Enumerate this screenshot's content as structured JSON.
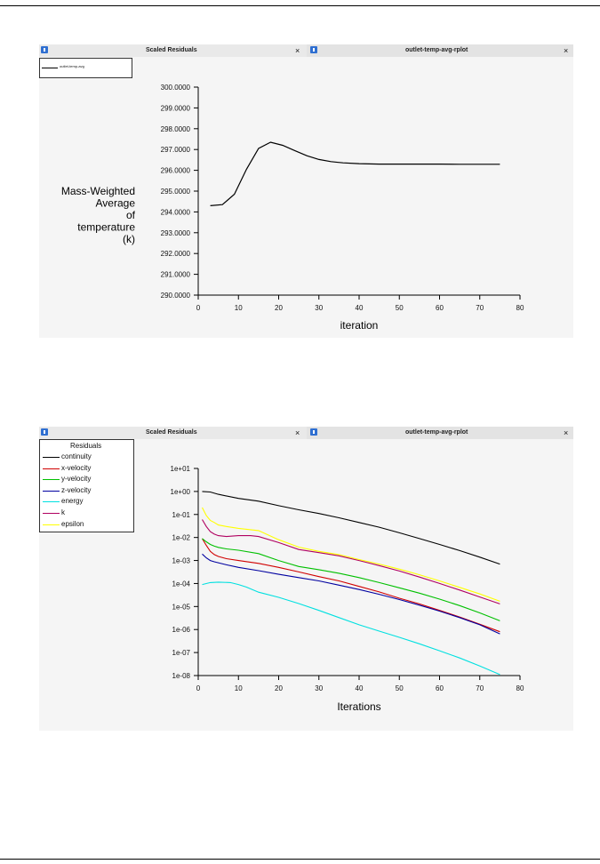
{
  "top_window": {
    "tab_left_label": "Scaled Residuals",
    "tab_right_label": "outlet-temp-avg-rplot",
    "close_symbol": "×",
    "legend_entry": "outlet-temp-avg"
  },
  "bottom_window": {
    "tab_left_label": "Scaled Residuals",
    "tab_right_label": "outlet-temp-avg-rplot",
    "close_symbol": "×",
    "legend_title": "Residuals"
  },
  "chart_data": [
    {
      "type": "line",
      "ylabel_lines": [
        "Mass-Weighted",
        "Average",
        "of",
        "temperature",
        "(k)"
      ],
      "xlabel": "iteration",
      "xlim": [
        0,
        80
      ],
      "ylim": [
        290,
        300
      ],
      "x_ticks": [
        "0",
        "10",
        "20",
        "30",
        "40",
        "50",
        "60",
        "70",
        "80"
      ],
      "y_ticks": [
        "290.0000",
        "291.0000",
        "292.0000",
        "293.0000",
        "294.0000",
        "295.0000",
        "296.0000",
        "297.0000",
        "298.0000",
        "299.0000",
        "300.0000"
      ],
      "series": [
        {
          "name": "outlet-temp-avg",
          "color": "#000000",
          "x": [
            3,
            6,
            9,
            12,
            15,
            18,
            21,
            24,
            27,
            30,
            33,
            36,
            40,
            45,
            50,
            55,
            60,
            65,
            70,
            75
          ],
          "y": [
            294.3,
            294.35,
            294.85,
            296.05,
            297.05,
            297.35,
            297.2,
            296.95,
            296.7,
            296.52,
            296.42,
            296.36,
            296.32,
            296.3,
            296.3,
            296.3,
            296.3,
            296.29,
            296.29,
            296.29
          ]
        }
      ]
    },
    {
      "type": "line",
      "yscale": "log",
      "xlabel": "Iterations",
      "xlim": [
        0,
        80
      ],
      "ylim": [
        1e-08,
        10
      ],
      "x_ticks": [
        "0",
        "10",
        "20",
        "30",
        "40",
        "50",
        "60",
        "70",
        "80"
      ],
      "y_ticks": [
        "1e-08",
        "1e-07",
        "1e-06",
        "1e-05",
        "1e-04",
        "1e-03",
        "1e-02",
        "1e-01",
        "1e+00",
        "1e+01"
      ],
      "legend": "top-left",
      "series": [
        {
          "name": "continuity",
          "color": "#000000",
          "x": [
            1,
            3,
            5,
            10,
            15,
            20,
            25,
            30,
            35,
            40,
            45,
            50,
            55,
            60,
            65,
            70,
            75
          ],
          "y": [
            1.0,
            0.95,
            0.75,
            0.5,
            0.38,
            0.24,
            0.16,
            0.11,
            0.072,
            0.045,
            0.028,
            0.016,
            0.009,
            0.005,
            0.0027,
            0.0014,
            0.0007
          ]
        },
        {
          "name": "x-velocity",
          "color": "#d00000",
          "x": [
            1,
            2,
            3,
            4,
            5,
            7,
            10,
            15,
            20,
            25,
            30,
            35,
            40,
            45,
            50,
            55,
            60,
            65,
            70,
            75
          ],
          "y": [
            0.009,
            0.0045,
            0.0025,
            0.0018,
            0.0015,
            0.0012,
            0.001,
            0.00075,
            0.0005,
            0.00032,
            0.0002,
            0.00013,
            7.5e-05,
            4.3e-05,
            2.3e-05,
            1.3e-05,
            6.8e-06,
            3.5e-06,
            1.7e-06,
            8e-07
          ]
        },
        {
          "name": "y-velocity",
          "color": "#00c000",
          "x": [
            1,
            2,
            3,
            4,
            5,
            7,
            10,
            15,
            20,
            25,
            30,
            35,
            40,
            45,
            50,
            55,
            60,
            65,
            70,
            75
          ],
          "y": [
            0.009,
            0.0065,
            0.005,
            0.0042,
            0.0037,
            0.0032,
            0.0028,
            0.002,
            0.001,
            0.00055,
            0.0004,
            0.00028,
            0.00018,
            0.00011,
            6.5e-05,
            3.8e-05,
            2.1e-05,
            1.1e-05,
            5.3e-06,
            2.4e-06
          ]
        },
        {
          "name": "z-velocity",
          "color": "#0000a0",
          "x": [
            1,
            2,
            3,
            4,
            5,
            7,
            10,
            15,
            20,
            25,
            30,
            35,
            40,
            45,
            50,
            55,
            60,
            65,
            70,
            75
          ],
          "y": [
            0.0019,
            0.0013,
            0.001,
            0.00088,
            0.0008,
            0.00065,
            0.0005,
            0.00036,
            0.00025,
            0.00018,
            0.00013,
            8.5e-05,
            5.5e-05,
            3.4e-05,
            2e-05,
            1.15e-05,
            6.3e-06,
            3.3e-06,
            1.6e-06,
            6.5e-07
          ]
        },
        {
          "name": "energy",
          "color": "#00e0e0",
          "x": [
            1,
            3,
            5,
            8,
            10,
            12,
            15,
            20,
            25,
            30,
            35,
            40,
            45,
            50,
            55,
            60,
            65,
            70,
            75
          ],
          "y": [
            9e-05,
            0.00011,
            0.000115,
            0.00011,
            9e-05,
            7e-05,
            4.2e-05,
            2.5e-05,
            1.35e-05,
            6.8e-06,
            3.3e-06,
            1.6e-06,
            8.5e-07,
            4.6e-07,
            2.4e-07,
            1.2e-07,
            5.8e-08,
            2.6e-08,
            1.1e-08
          ]
        },
        {
          "name": "k",
          "color": "#b00060",
          "x": [
            1,
            2,
            3,
            4,
            5,
            7,
            10,
            13,
            15,
            20,
            25,
            30,
            35,
            40,
            45,
            50,
            55,
            60,
            65,
            70,
            75
          ],
          "y": [
            0.06,
            0.03,
            0.018,
            0.014,
            0.012,
            0.011,
            0.012,
            0.012,
            0.011,
            0.006,
            0.003,
            0.0022,
            0.0016,
            0.001,
            0.0006,
            0.00035,
            0.00019,
            0.0001,
            5.2e-05,
            2.6e-05,
            1.3e-05
          ]
        },
        {
          "name": "epsilon",
          "color": "#ffff00",
          "x": [
            1,
            2,
            3,
            4,
            5,
            7,
            10,
            15,
            20,
            25,
            30,
            35,
            40,
            45,
            50,
            55,
            60,
            65,
            70,
            75
          ],
          "y": [
            0.2,
            0.09,
            0.055,
            0.045,
            0.035,
            0.03,
            0.025,
            0.02,
            0.008,
            0.0038,
            0.0025,
            0.0018,
            0.0011,
            0.0007,
            0.00042,
            0.00024,
            0.00013,
            6.8e-05,
            3.5e-05,
            1.7e-05
          ]
        }
      ]
    }
  ]
}
